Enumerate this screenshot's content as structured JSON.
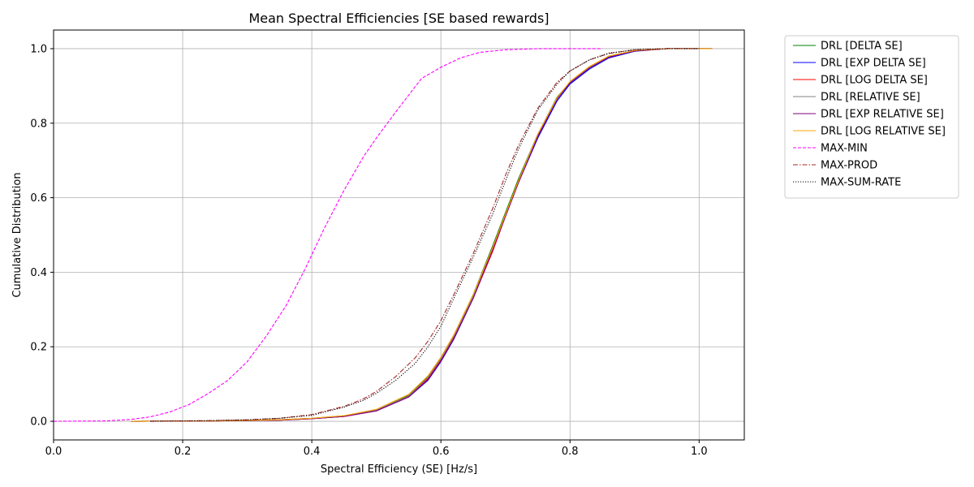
{
  "chart_data": {
    "type": "line",
    "title": "Mean Spectral Efficiencies [SE based rewards]",
    "xlabel": "Spectral Efficiency (SE) [Hz/s]",
    "ylabel": "Cumulative Distribution",
    "xlim": [
      0.0,
      1.07
    ],
    "ylim": [
      -0.05,
      1.05
    ],
    "xticks": [
      "0.0",
      "0.2",
      "0.4",
      "0.6",
      "0.8",
      "1.0"
    ],
    "yticks": [
      "0.0",
      "0.2",
      "0.4",
      "0.6",
      "0.8",
      "1.0"
    ],
    "grid": true,
    "legend_position": "outside-right",
    "series": [
      {
        "name": "DRL [DELTA SE]",
        "color": "#008000",
        "dash": "solid",
        "x": [
          0.12,
          0.25,
          0.35,
          0.4,
          0.45,
          0.5,
          0.55,
          0.58,
          0.6,
          0.62,
          0.65,
          0.68,
          0.7,
          0.72,
          0.75,
          0.78,
          0.8,
          0.83,
          0.86,
          0.9,
          0.95,
          1.02
        ],
        "y": [
          0.0,
          0.001,
          0.004,
          0.008,
          0.015,
          0.03,
          0.07,
          0.12,
          0.17,
          0.23,
          0.34,
          0.47,
          0.56,
          0.65,
          0.77,
          0.87,
          0.91,
          0.95,
          0.98,
          0.995,
          1.0,
          1.0
        ]
      },
      {
        "name": "DRL [EXP DELTA SE]",
        "color": "#0000ff",
        "dash": "solid",
        "x": [
          0.12,
          0.25,
          0.35,
          0.4,
          0.45,
          0.5,
          0.55,
          0.58,
          0.6,
          0.62,
          0.65,
          0.68,
          0.7,
          0.72,
          0.75,
          0.78,
          0.8,
          0.83,
          0.86,
          0.9,
          0.95,
          1.02
        ],
        "y": [
          0.0,
          0.001,
          0.003,
          0.007,
          0.013,
          0.028,
          0.065,
          0.11,
          0.16,
          0.22,
          0.33,
          0.46,
          0.55,
          0.64,
          0.76,
          0.86,
          0.905,
          0.945,
          0.975,
          0.993,
          1.0,
          1.0
        ]
      },
      {
        "name": "DRL [LOG DELTA SE]",
        "color": "#ff0000",
        "dash": "solid",
        "x": [
          0.12,
          0.25,
          0.35,
          0.4,
          0.45,
          0.5,
          0.55,
          0.58,
          0.6,
          0.62,
          0.65,
          0.68,
          0.7,
          0.72,
          0.75,
          0.78,
          0.8,
          0.83,
          0.86,
          0.9,
          0.95,
          1.02
        ],
        "y": [
          0.0,
          0.001,
          0.003,
          0.007,
          0.013,
          0.028,
          0.066,
          0.115,
          0.165,
          0.225,
          0.33,
          0.455,
          0.55,
          0.64,
          0.765,
          0.865,
          0.91,
          0.95,
          0.978,
          0.994,
          1.0,
          1.0
        ]
      },
      {
        "name": "DRL [RELATIVE SE]",
        "color": "#808080",
        "dash": "solid",
        "x": [
          0.12,
          0.25,
          0.35,
          0.4,
          0.45,
          0.5,
          0.55,
          0.58,
          0.6,
          0.62,
          0.65,
          0.68,
          0.7,
          0.72,
          0.75,
          0.78,
          0.8,
          0.83,
          0.86,
          0.9,
          0.95,
          1.02
        ],
        "y": [
          0.0,
          0.001,
          0.004,
          0.008,
          0.014,
          0.03,
          0.068,
          0.118,
          0.168,
          0.228,
          0.335,
          0.465,
          0.555,
          0.645,
          0.77,
          0.868,
          0.91,
          0.95,
          0.979,
          0.995,
          1.0,
          1.0
        ]
      },
      {
        "name": "DRL [EXP RELATIVE SE]",
        "color": "#800080",
        "dash": "solid",
        "x": [
          0.12,
          0.25,
          0.35,
          0.4,
          0.45,
          0.5,
          0.55,
          0.58,
          0.6,
          0.62,
          0.65,
          0.68,
          0.7,
          0.72,
          0.75,
          0.78,
          0.8,
          0.83,
          0.86,
          0.9,
          0.95,
          1.02
        ],
        "y": [
          0.0,
          0.001,
          0.003,
          0.007,
          0.013,
          0.028,
          0.065,
          0.112,
          0.162,
          0.222,
          0.33,
          0.46,
          0.55,
          0.64,
          0.765,
          0.865,
          0.908,
          0.948,
          0.977,
          0.994,
          1.0,
          1.0
        ]
      },
      {
        "name": "DRL [LOG RELATIVE SE]",
        "color": "#ffa500",
        "dash": "solid",
        "x": [
          0.12,
          0.25,
          0.35,
          0.4,
          0.45,
          0.5,
          0.55,
          0.58,
          0.6,
          0.62,
          0.65,
          0.68,
          0.7,
          0.72,
          0.75,
          0.78,
          0.8,
          0.83,
          0.86,
          0.9,
          0.95,
          1.02
        ],
        "y": [
          0.0,
          0.001,
          0.004,
          0.008,
          0.015,
          0.032,
          0.072,
          0.122,
          0.172,
          0.232,
          0.34,
          0.465,
          0.555,
          0.645,
          0.77,
          0.868,
          0.912,
          0.952,
          0.98,
          0.995,
          1.0,
          1.0
        ]
      },
      {
        "name": "MAX-MIN",
        "color": "#ff00ff",
        "dash": "dashed",
        "x": [
          0.0,
          0.08,
          0.12,
          0.15,
          0.18,
          0.21,
          0.24,
          0.27,
          0.3,
          0.33,
          0.36,
          0.39,
          0.42,
          0.45,
          0.48,
          0.5,
          0.53,
          0.57,
          0.6,
          0.63,
          0.66,
          0.7,
          0.75,
          0.8,
          0.85
        ],
        "y": [
          0.0,
          0.001,
          0.005,
          0.012,
          0.025,
          0.045,
          0.075,
          0.11,
          0.16,
          0.23,
          0.31,
          0.41,
          0.52,
          0.62,
          0.71,
          0.76,
          0.83,
          0.92,
          0.95,
          0.975,
          0.99,
          0.997,
          1.0,
          1.0,
          1.0
        ]
      },
      {
        "name": "MAX-PROD",
        "color": "#a52a2a",
        "dash": "dashdot",
        "x": [
          0.15,
          0.25,
          0.3,
          0.35,
          0.4,
          0.45,
          0.48,
          0.5,
          0.53,
          0.56,
          0.58,
          0.6,
          0.62,
          0.65,
          0.68,
          0.7,
          0.72,
          0.75,
          0.78,
          0.8,
          0.83,
          0.86,
          0.9,
          0.95,
          1.0
        ],
        "y": [
          0.0,
          0.002,
          0.004,
          0.008,
          0.018,
          0.04,
          0.06,
          0.08,
          0.12,
          0.17,
          0.215,
          0.27,
          0.34,
          0.45,
          0.57,
          0.66,
          0.74,
          0.84,
          0.91,
          0.94,
          0.97,
          0.987,
          0.997,
          1.0,
          1.0
        ]
      },
      {
        "name": "MAX-SUM-RATE",
        "color": "#000000",
        "dash": "dotted",
        "x": [
          0.15,
          0.25,
          0.3,
          0.35,
          0.4,
          0.45,
          0.48,
          0.5,
          0.53,
          0.56,
          0.58,
          0.6,
          0.62,
          0.65,
          0.68,
          0.7,
          0.72,
          0.75,
          0.78,
          0.8,
          0.83,
          0.86,
          0.9,
          0.95,
          1.0
        ],
        "y": [
          0.0,
          0.002,
          0.004,
          0.008,
          0.016,
          0.038,
          0.056,
          0.075,
          0.11,
          0.155,
          0.2,
          0.255,
          0.33,
          0.44,
          0.555,
          0.645,
          0.73,
          0.835,
          0.905,
          0.94,
          0.97,
          0.988,
          0.997,
          1.0,
          1.0
        ]
      }
    ]
  }
}
